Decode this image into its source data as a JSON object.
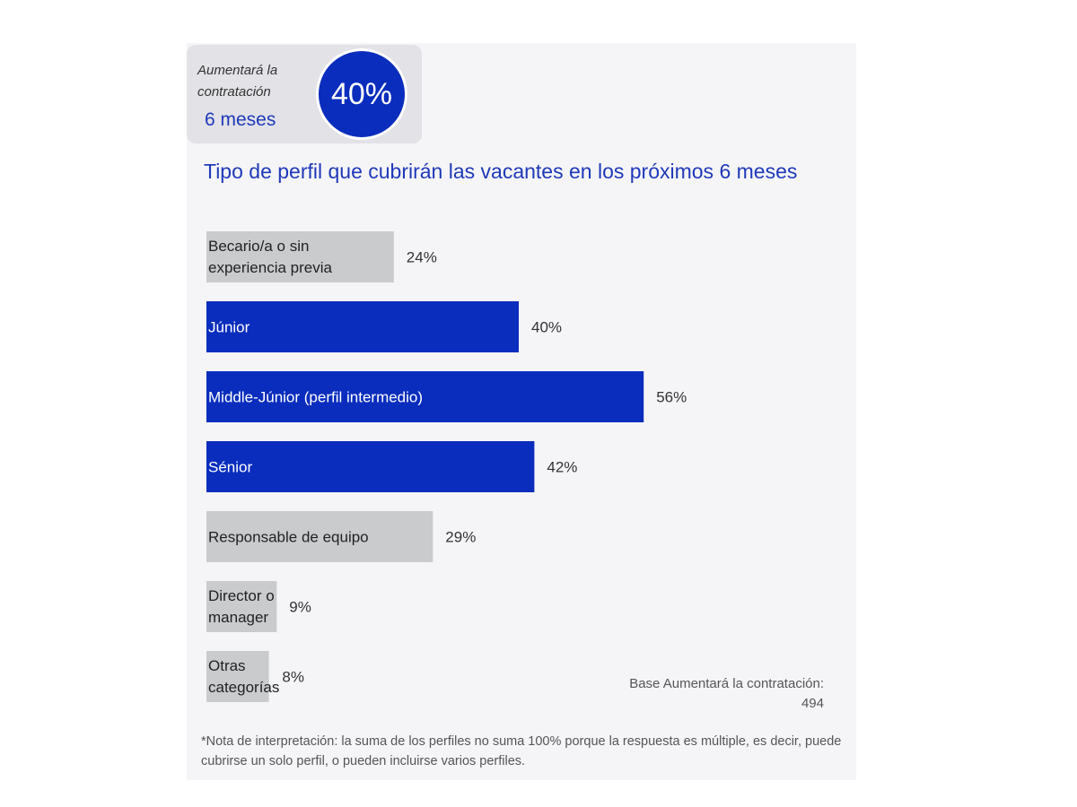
{
  "badge": {
    "line1": "Aumentará la",
    "line2": "contratación",
    "period": "6 meses",
    "value": "40%",
    "circle_color": "#0a2dbd"
  },
  "chart_title": "Tipo de perfil que cubrirán las vacantes en los próximos 6 meses",
  "base_note": "Base Aumentará la contratación: 494",
  "footnote": "*Nota de interpretación: la suma de los perfiles no suma 100% porque la respuesta es múltiple, es decir, puede cubrirse un solo perfil, o pueden incluirse varios perfiles.",
  "chart_data": {
    "type": "bar",
    "orientation": "horizontal",
    "title": "Tipo de perfil que cubrirán las vacantes en los próximos 6 meses",
    "unit": "%",
    "categories": [
      [
        "Becario/a o sin",
        "experiencia previa"
      ],
      [
        "Júnior"
      ],
      [
        "Middle-Júnior (perfil intermedio)"
      ],
      [
        "Sénior"
      ],
      [
        "Responsable de equipo"
      ],
      [
        "Director o",
        "manager"
      ],
      [
        "Otras",
        "categorías"
      ]
    ],
    "values": [
      24,
      40,
      56,
      42,
      29,
      9,
      8
    ],
    "value_labels": [
      "24%",
      "40%",
      "56%",
      "42%",
      "29%",
      "9%",
      "8%"
    ],
    "highlighted": [
      false,
      true,
      true,
      true,
      false,
      false,
      false
    ],
    "colors": {
      "highlight": "#0a2dbd",
      "default": "#c9cbcd",
      "highlight_text": "#ffffff",
      "default_text": "#222222",
      "value_text": "#333333"
    },
    "xlim": [
      0,
      100
    ],
    "grid": false,
    "legend": "none"
  }
}
